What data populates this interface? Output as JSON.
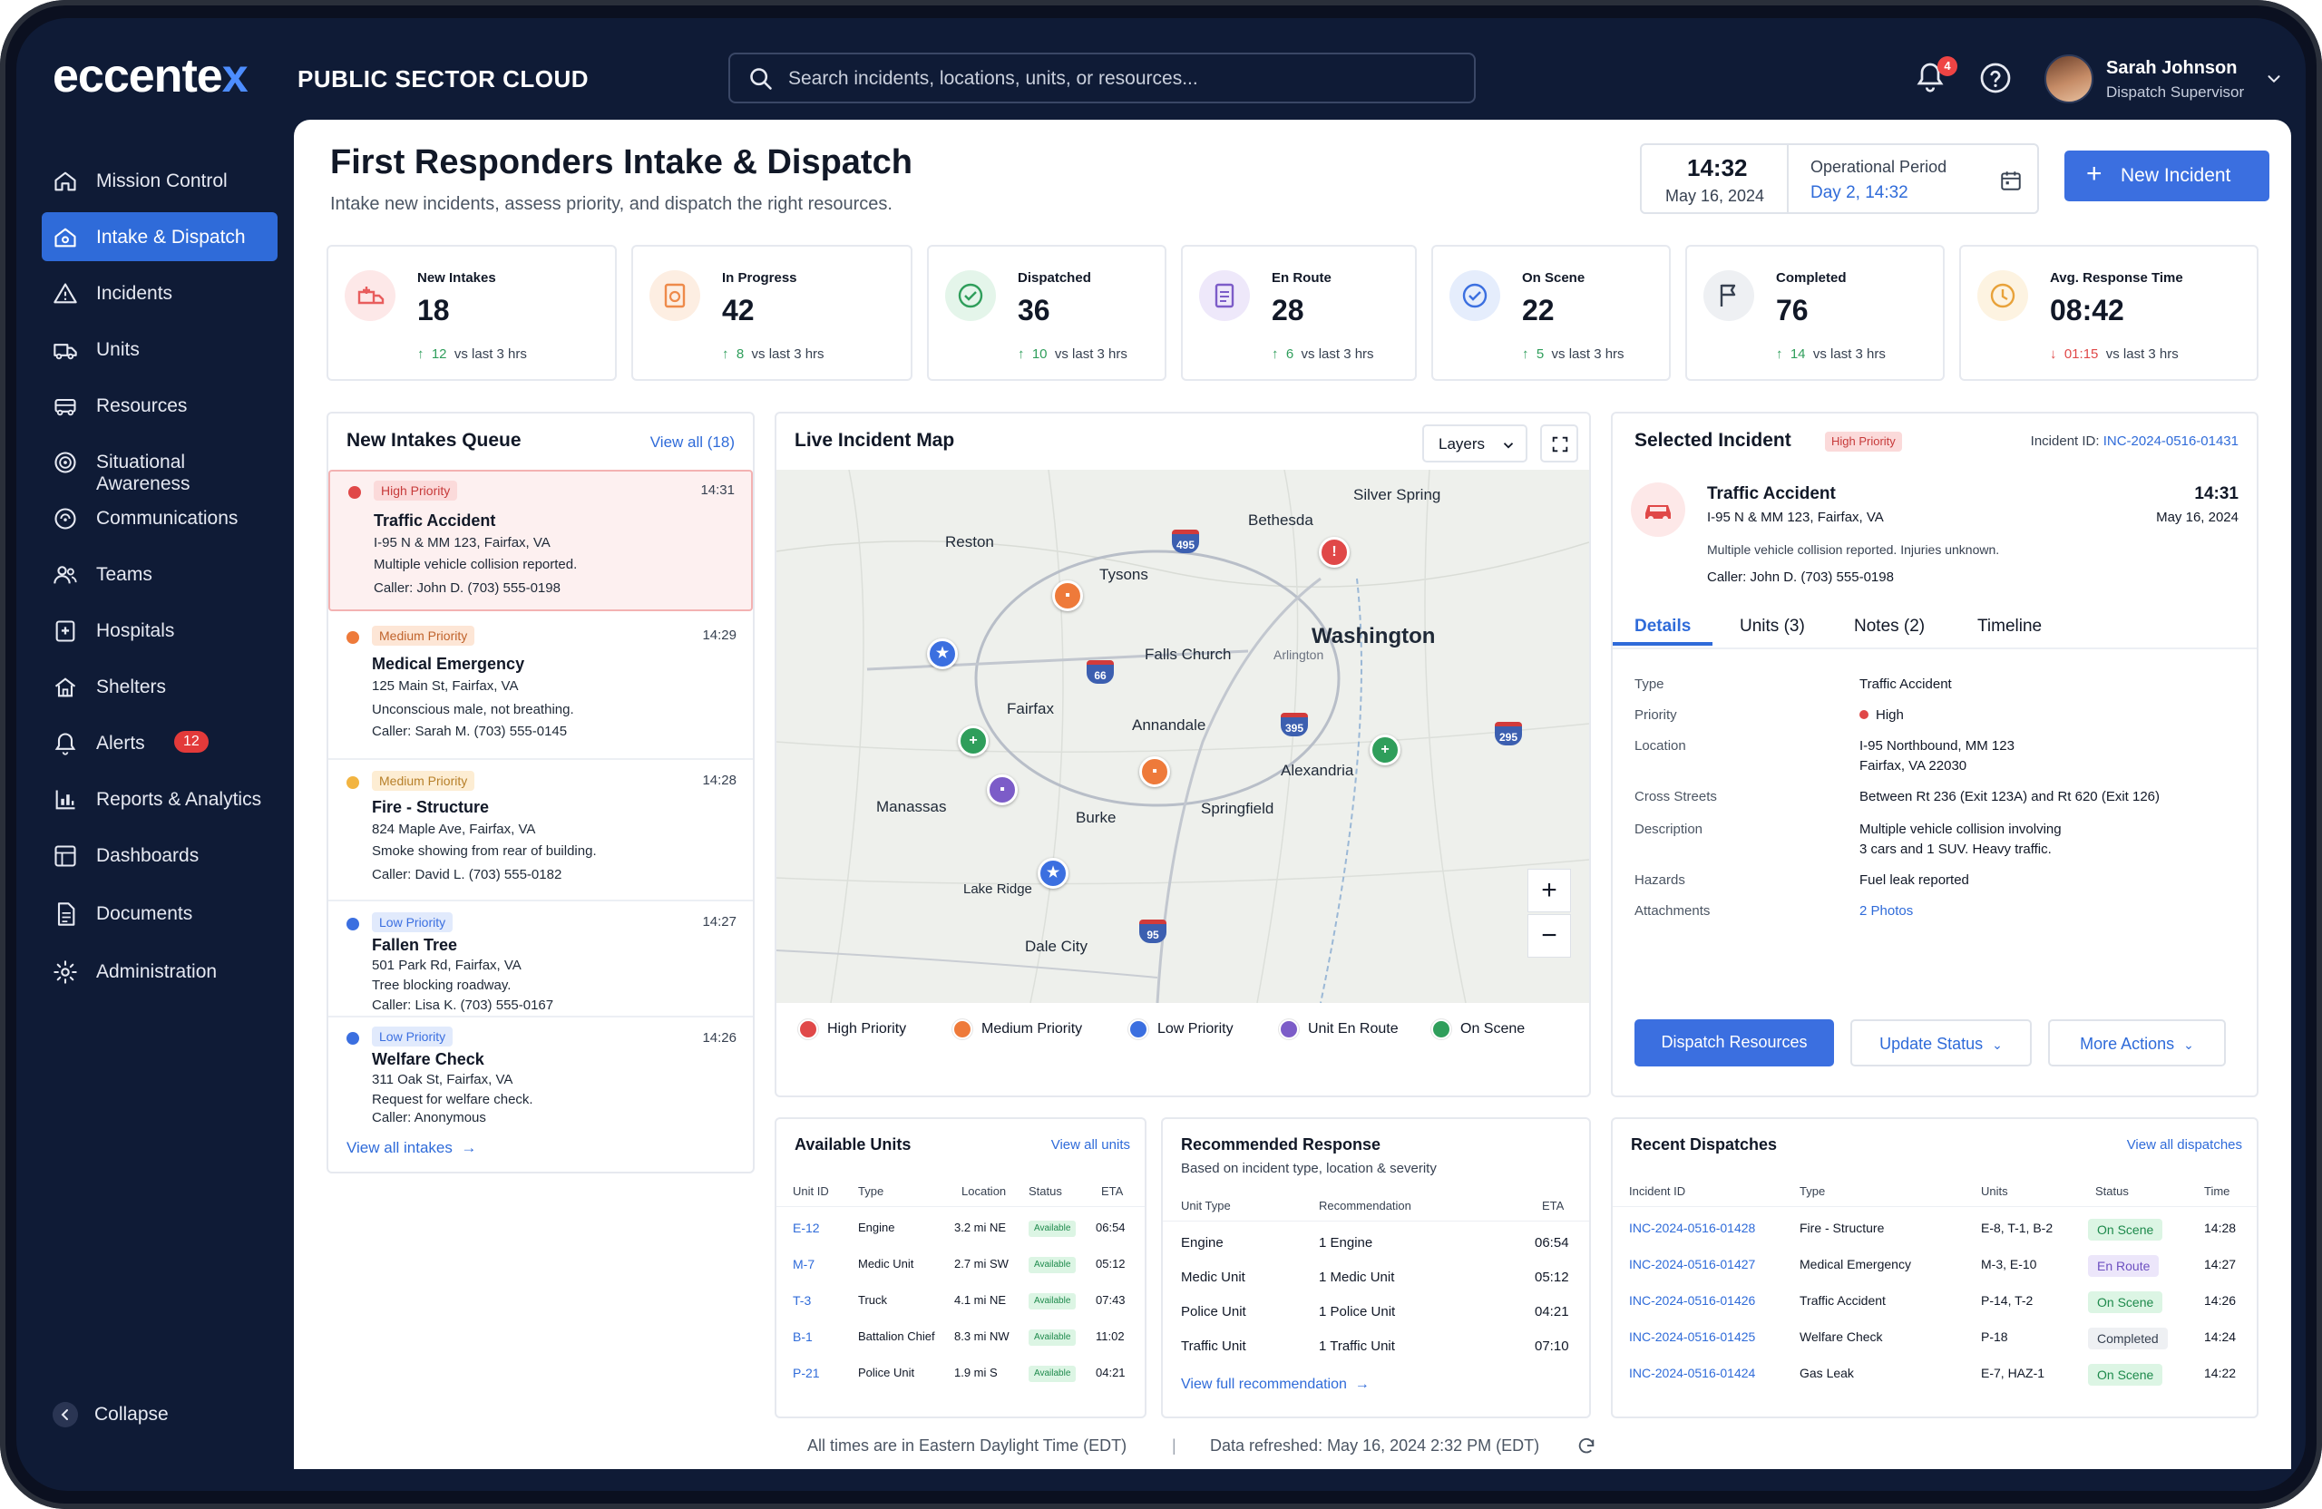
{
  "brand": {
    "logo_main": "eccente",
    "logo_x": "x",
    "product": "PUBLIC SECTOR CLOUD"
  },
  "search": {
    "placeholder": "Search incidents, locations, units, or resources..."
  },
  "notifications": {
    "count": "4"
  },
  "user": {
    "name": "Sarah Johnson",
    "role": "Dispatch Supervisor"
  },
  "sidebar": {
    "items": [
      {
        "label": "Mission Control",
        "icon": "home-icon"
      },
      {
        "label": "Intake & Dispatch",
        "icon": "inbox-icon",
        "active": true
      },
      {
        "label": "Incidents",
        "icon": "alert-triangle-icon"
      },
      {
        "label": "Units",
        "icon": "ambulance-icon"
      },
      {
        "label": "Resources",
        "icon": "truck-icon"
      },
      {
        "label": "Situational Awareness",
        "icon": "radar-icon"
      },
      {
        "label": "Communications",
        "icon": "radio-icon"
      },
      {
        "label": "Teams",
        "icon": "users-icon"
      },
      {
        "label": "Hospitals",
        "icon": "hospital-icon"
      },
      {
        "label": "Shelters",
        "icon": "shelter-icon"
      },
      {
        "label": "Alerts",
        "icon": "bell-icon",
        "badge": "12"
      },
      {
        "label": "Reports & Analytics",
        "icon": "bar-chart-icon"
      },
      {
        "label": "Dashboards",
        "icon": "dashboard-icon"
      },
      {
        "label": "Documents",
        "icon": "document-icon"
      },
      {
        "label": "Administration",
        "icon": "gear-icon"
      }
    ],
    "collapse": "Collapse"
  },
  "page": {
    "title": "First Responders Intake & Dispatch",
    "subtitle": "Intake new incidents, assess priority, and dispatch the right resources.",
    "time": "14:32",
    "date": "May 16, 2024",
    "op_label": "Operational Period",
    "op_value": "Day 2, 14:32",
    "new_incident": "New Incident"
  },
  "stats": [
    {
      "label": "New Intakes",
      "value": "18",
      "delta": "12",
      "note": "vs last 3 hrs",
      "dir": "up",
      "color": "#e85d5d",
      "bg": "#fde8e8"
    },
    {
      "label": "In Progress",
      "value": "42",
      "delta": "8",
      "note": "vs last 3 hrs",
      "dir": "up",
      "color": "#ee8a4a",
      "bg": "#fdeee2"
    },
    {
      "label": "Dispatched",
      "value": "36",
      "delta": "10",
      "note": "vs last 3 hrs",
      "dir": "up",
      "color": "#2f9e5b",
      "bg": "#e4f5ea"
    },
    {
      "label": "En Route",
      "value": "28",
      "delta": "6",
      "note": "vs last 3 hrs",
      "dir": "up",
      "color": "#7c5cc8",
      "bg": "#eee8fa"
    },
    {
      "label": "On Scene",
      "value": "22",
      "delta": "5",
      "note": "vs last 3 hrs",
      "dir": "up",
      "color": "#3b6fe0",
      "bg": "#e5edfc"
    },
    {
      "label": "Completed",
      "value": "76",
      "delta": "14",
      "note": "vs last 3 hrs",
      "dir": "up",
      "color": "#374151",
      "bg": "#eef0f3"
    },
    {
      "label": "Avg. Response Time",
      "value": "08:42",
      "delta": "01:15",
      "note": "vs last 3 hrs",
      "dir": "down",
      "color": "#e8a23a",
      "bg": "#fdf3e1"
    }
  ],
  "queue": {
    "title": "New Intakes Queue",
    "view_all": "View all (18)",
    "footer": "View all intakes",
    "items": [
      {
        "priority": "High Priority",
        "time": "14:31",
        "title": "Traffic Accident",
        "line1": "I-95 N & MM 123, Fairfax, VA",
        "line2": "Multiple vehicle collision reported.",
        "line3": "Caller: John D. (703) 555-0198",
        "color": "#e04848",
        "badge_bg": "#fbdada",
        "badge_fg": "#c73a3a"
      },
      {
        "priority": "Medium Priority",
        "time": "14:29",
        "title": "Medical Emergency",
        "line1": "125 Main St, Fairfax, VA",
        "line2": "Unconscious male, not breathing.",
        "line3": "Caller: Sarah M. (703) 555-0145",
        "color": "#ee7a3a",
        "badge_bg": "#fde6d6",
        "badge_fg": "#c0632c"
      },
      {
        "priority": "Medium Priority",
        "time": "14:28",
        "title": "Fire - Structure",
        "line1": "824 Maple Ave, Fairfax, VA",
        "line2": "Smoke showing from rear of building.",
        "line3": "Caller: David L. (703) 555-0182",
        "color": "#f2b441",
        "badge_bg": "#fdedd3",
        "badge_fg": "#b7802a"
      },
      {
        "priority": "Low Priority",
        "time": "14:27",
        "title": "Fallen Tree",
        "line1": "501 Park Rd, Fairfax, VA",
        "line2": "Tree blocking roadway.",
        "line3": "Caller: Lisa K. (703) 555-0167",
        "color": "#3b6fe0",
        "badge_bg": "#e1eafc",
        "badge_fg": "#3b6fe0"
      },
      {
        "priority": "Low Priority",
        "time": "14:26",
        "title": "Welfare Check",
        "line1": "311 Oak St, Fairfax, VA",
        "line2": "Request for welfare check.",
        "line3": "Caller: Anonymous",
        "color": "#3b6fe0",
        "badge_bg": "#e1eafc",
        "badge_fg": "#3b6fe0"
      }
    ]
  },
  "map": {
    "title": "Live Incident Map",
    "layers": "Layers",
    "places": [
      "Silver Spring",
      "Bethesda",
      "Reston",
      "Tysons",
      "Washington",
      "Falls Church",
      "Arlington",
      "Fairfax",
      "Annandale",
      "Alexandria",
      "Manassas",
      "Burke",
      "Springfield",
      "Lake Ridge",
      "Dale City"
    ],
    "highways": [
      "495",
      "66",
      "395",
      "295",
      "95"
    ],
    "legend": [
      {
        "label": "High Priority",
        "color": "#e04848"
      },
      {
        "label": "Medium Priority",
        "color": "#ee7a3a"
      },
      {
        "label": "Low Priority",
        "color": "#3b6fe0"
      },
      {
        "label": "Unit En Route",
        "color": "#7c5cc8"
      },
      {
        "label": "On Scene",
        "color": "#2f9e5b"
      }
    ],
    "zoom_in": "+",
    "zoom_out": "−"
  },
  "selected": {
    "title": "Selected Incident",
    "priority": "High Priority",
    "id_label": "Incident ID:",
    "id": "INC-2024-0516-01431",
    "name": "Traffic Accident",
    "time": "14:31",
    "address": "I-95 N & MM 123, Fairfax, VA",
    "date": "May 16, 2024",
    "desc": "Multiple vehicle collision reported. Injuries unknown.",
    "caller": "Caller: John D. (703) 555-0198",
    "tabs": [
      "Details",
      "Units (3)",
      "Notes (2)",
      "Timeline"
    ],
    "details": [
      {
        "k": "Type",
        "v": "Traffic Accident"
      },
      {
        "k": "Priority",
        "v": "High"
      },
      {
        "k": "Location",
        "v": "I-95 Northbound, MM 123",
        "v2": "Fairfax, VA 22030"
      },
      {
        "k": "Cross Streets",
        "v": "Between Rt 236 (Exit 123A) and Rt 620 (Exit 126)"
      },
      {
        "k": "Description",
        "v": "Multiple vehicle collision involving",
        "v2": "3 cars and 1 SUV. Heavy traffic."
      },
      {
        "k": "Hazards",
        "v": "Fuel leak reported"
      },
      {
        "k": "Attachments",
        "v": "2 Photos"
      }
    ],
    "dispatch": "Dispatch Resources",
    "update": "Update Status",
    "more": "More Actions"
  },
  "units": {
    "title": "Available Units",
    "view_all": "View all units",
    "headers": [
      "Unit ID",
      "Type",
      "Location",
      "Status",
      "ETA"
    ],
    "rows": [
      [
        "E-12",
        "Engine",
        "3.2 mi NE",
        "Available",
        "06:54"
      ],
      [
        "M-7",
        "Medic Unit",
        "2.7 mi SW",
        "Available",
        "05:12"
      ],
      [
        "T-3",
        "Truck",
        "4.1 mi NE",
        "Available",
        "07:43"
      ],
      [
        "B-1",
        "Battalion Chief",
        "8.3 mi NW",
        "Available",
        "11:02"
      ],
      [
        "P-21",
        "Police Unit",
        "1.9 mi S",
        "Available",
        "04:21"
      ]
    ]
  },
  "recommended": {
    "title": "Recommended Response",
    "subtitle": "Based on incident type, location & severity",
    "headers": [
      "Unit Type",
      "Recommendation",
      "ETA"
    ],
    "rows": [
      [
        "Engine",
        "1 Engine",
        "06:54"
      ],
      [
        "Medic Unit",
        "1 Medic Unit",
        "05:12"
      ],
      [
        "Police Unit",
        "1 Police Unit",
        "04:21"
      ],
      [
        "Traffic Unit",
        "1 Traffic Unit",
        "07:10"
      ]
    ],
    "link": "View full recommendation"
  },
  "dispatches": {
    "title": "Recent Dispatches",
    "view_all": "View all dispatches",
    "headers": [
      "Incident ID",
      "Type",
      "Units",
      "Status",
      "Time"
    ],
    "rows": [
      [
        "INC-2024-0516-01428",
        "Fire - Structure",
        "E-8, T-1, B-2",
        "On Scene",
        "14:28"
      ],
      [
        "INC-2024-0516-01427",
        "Medical Emergency",
        "M-3, E-10",
        "En Route",
        "14:27"
      ],
      [
        "INC-2024-0516-01426",
        "Traffic Accident",
        "P-14, T-2",
        "On Scene",
        "14:26"
      ],
      [
        "INC-2024-0516-01425",
        "Welfare Check",
        "P-18",
        "Completed",
        "14:24"
      ],
      [
        "INC-2024-0516-01424",
        "Gas Leak",
        "E-7, HAZ-1",
        "On Scene",
        "14:22"
      ]
    ]
  },
  "footer": {
    "tz": "All times are in Eastern Daylight Time (EDT)",
    "sep": "|",
    "refreshed": "Data refreshed: May 16, 2024 2:32 PM (EDT)"
  }
}
